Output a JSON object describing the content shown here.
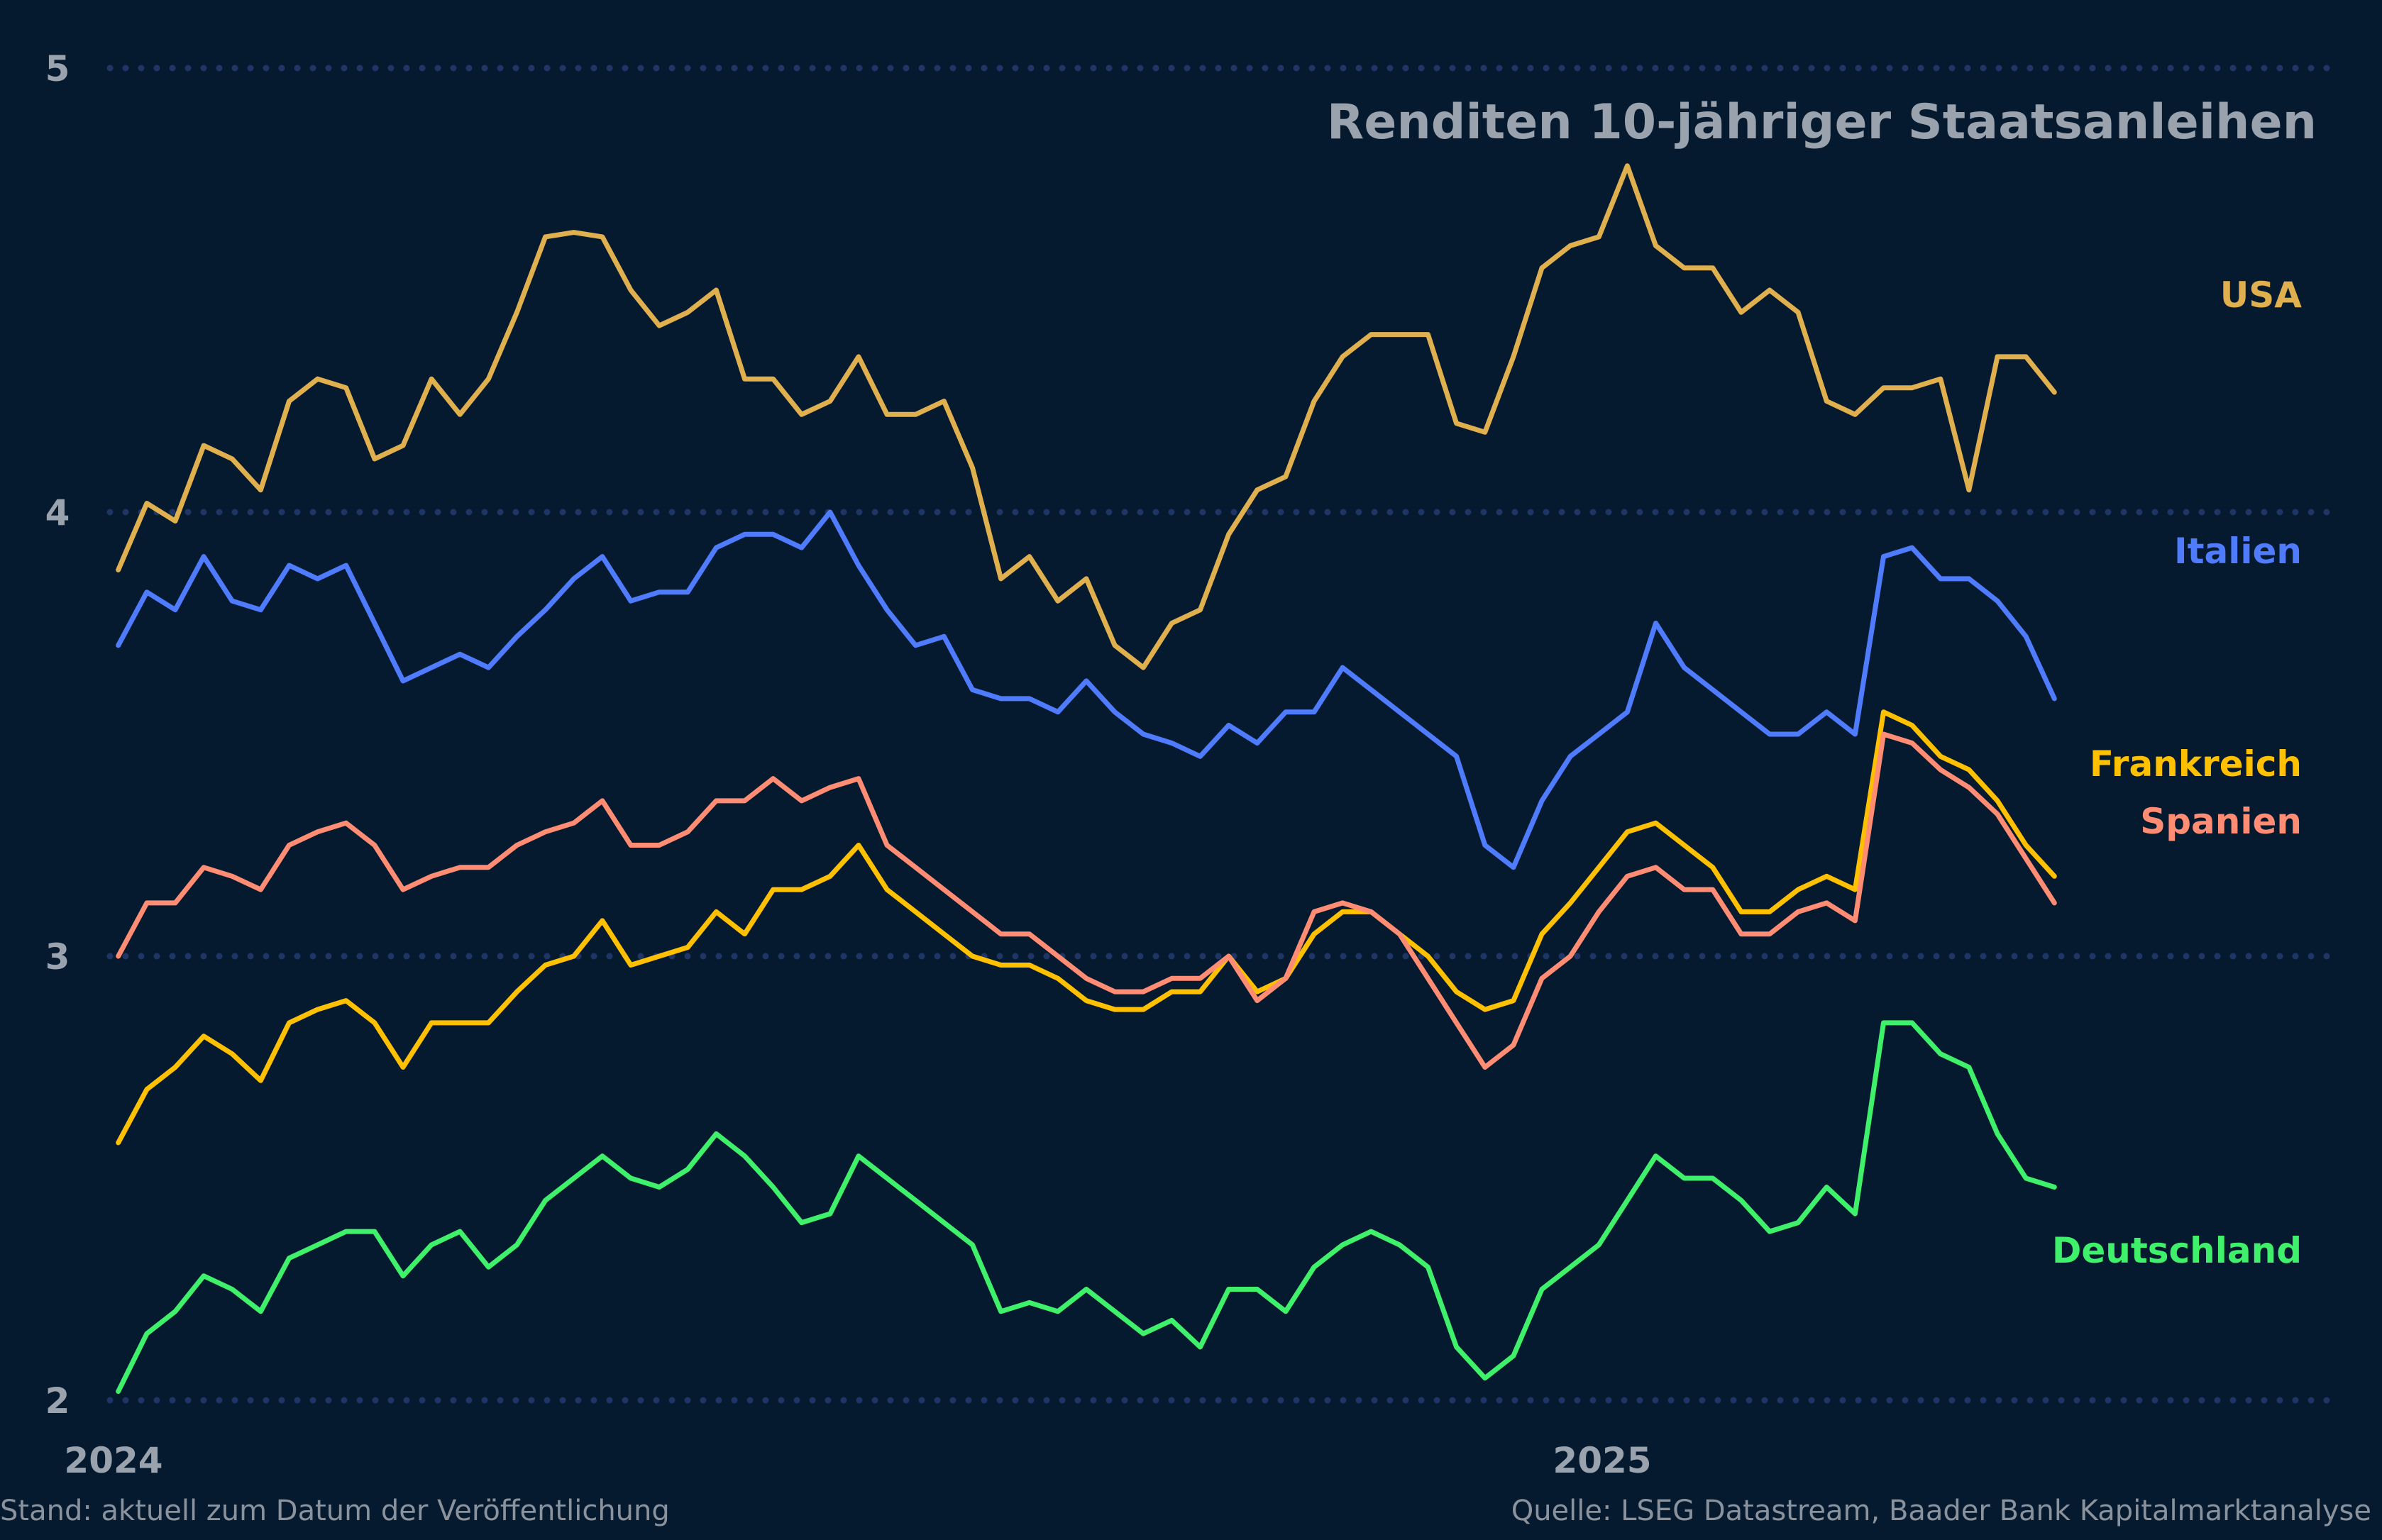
{
  "chart_data": {
    "type": "line",
    "title": "Renditen 10-jähriger Staatsanleihen",
    "xlabel": "",
    "ylabel": "",
    "ylim": [
      2,
      5
    ],
    "yticks": [
      "2",
      "3",
      "4",
      "5"
    ],
    "xticks": [
      {
        "label": "2024",
        "date": "2024-01-01"
      },
      {
        "label": "2025",
        "date": "2025-01-01"
      }
    ],
    "grid": "horizontal dotted",
    "legend": "labels at right end of lines",
    "x": [
      "2024-01-02",
      "2024-01-09",
      "2024-01-16",
      "2024-01-23",
      "2024-01-30",
      "2024-02-06",
      "2024-02-13",
      "2024-02-20",
      "2024-02-27",
      "2024-03-05",
      "2024-03-12",
      "2024-03-19",
      "2024-03-26",
      "2024-04-02",
      "2024-04-09",
      "2024-04-16",
      "2024-04-23",
      "2024-04-30",
      "2024-05-07",
      "2024-05-14",
      "2024-05-21",
      "2024-05-28",
      "2024-06-04",
      "2024-06-11",
      "2024-06-18",
      "2024-06-25",
      "2024-07-02",
      "2024-07-09",
      "2024-07-16",
      "2024-07-23",
      "2024-07-30",
      "2024-08-06",
      "2024-08-13",
      "2024-08-20",
      "2024-08-27",
      "2024-09-03",
      "2024-09-10",
      "2024-09-17",
      "2024-09-24",
      "2024-10-01",
      "2024-10-08",
      "2024-10-15",
      "2024-10-22",
      "2024-10-29",
      "2024-11-05",
      "2024-11-12",
      "2024-11-19",
      "2024-11-26",
      "2024-12-03",
      "2024-12-10",
      "2024-12-17",
      "2024-12-24",
      "2024-12-31",
      "2025-01-07",
      "2025-01-14",
      "2025-01-21",
      "2025-01-28",
      "2025-02-04",
      "2025-02-11",
      "2025-02-18",
      "2025-02-25",
      "2025-03-04",
      "2025-03-11",
      "2025-03-18",
      "2025-03-25",
      "2025-04-01",
      "2025-04-08",
      "2025-04-15",
      "2025-04-22"
    ],
    "series": [
      {
        "name": "USA",
        "color": "#e0b04e",
        "values": [
          3.87,
          4.02,
          3.98,
          4.15,
          4.12,
          4.05,
          4.25,
          4.3,
          4.28,
          4.12,
          4.15,
          4.3,
          4.22,
          4.3,
          4.45,
          4.62,
          4.63,
          4.62,
          4.5,
          4.42,
          4.45,
          4.5,
          4.3,
          4.3,
          4.22,
          4.25,
          4.35,
          4.22,
          4.22,
          4.25,
          4.1,
          3.85,
          3.9,
          3.8,
          3.85,
          3.7,
          3.65,
          3.75,
          3.78,
          3.95,
          4.05,
          4.08,
          4.25,
          4.35,
          4.4,
          4.4,
          4.4,
          4.2,
          4.18,
          4.35,
          4.55,
          4.6,
          4.62,
          4.78,
          4.6,
          4.55,
          4.55,
          4.45,
          4.5,
          4.45,
          4.25,
          4.22,
          4.28,
          4.28,
          4.3,
          4.05,
          4.35,
          4.35,
          4.27
        ]
      },
      {
        "name": "Italien",
        "color": "#4f7cff",
        "values": [
          3.7,
          3.82,
          3.78,
          3.9,
          3.8,
          3.78,
          3.88,
          3.85,
          3.88,
          3.75,
          3.62,
          3.65,
          3.68,
          3.65,
          3.72,
          3.78,
          3.85,
          3.9,
          3.8,
          3.82,
          3.82,
          3.92,
          3.95,
          3.95,
          3.92,
          4.0,
          3.88,
          3.78,
          3.7,
          3.72,
          3.6,
          3.58,
          3.58,
          3.55,
          3.62,
          3.55,
          3.5,
          3.48,
          3.45,
          3.52,
          3.48,
          3.55,
          3.55,
          3.65,
          3.6,
          3.55,
          3.5,
          3.45,
          3.25,
          3.2,
          3.35,
          3.45,
          3.5,
          3.55,
          3.75,
          3.65,
          3.6,
          3.55,
          3.5,
          3.5,
          3.55,
          3.5,
          3.9,
          3.92,
          3.85,
          3.85,
          3.8,
          3.72,
          3.58
        ]
      },
      {
        "name": "Frankreich",
        "color": "#ffc000",
        "values": [
          2.58,
          2.7,
          2.75,
          2.82,
          2.78,
          2.72,
          2.85,
          2.88,
          2.9,
          2.85,
          2.75,
          2.85,
          2.85,
          2.85,
          2.92,
          2.98,
          3.0,
          3.08,
          2.98,
          3.0,
          3.02,
          3.1,
          3.05,
          3.15,
          3.15,
          3.18,
          3.25,
          3.15,
          3.1,
          3.05,
          3.0,
          2.98,
          2.98,
          2.95,
          2.9,
          2.88,
          2.88,
          2.92,
          2.92,
          3.0,
          2.92,
          2.95,
          3.05,
          3.1,
          3.1,
          3.05,
          3.0,
          2.92,
          2.88,
          2.9,
          3.05,
          3.12,
          3.2,
          3.28,
          3.3,
          3.25,
          3.2,
          3.1,
          3.1,
          3.15,
          3.18,
          3.15,
          3.55,
          3.52,
          3.45,
          3.42,
          3.35,
          3.25,
          3.18
        ]
      },
      {
        "name": "Spanien",
        "color": "#ff8c73",
        "values": [
          3.0,
          3.12,
          3.12,
          3.2,
          3.18,
          3.15,
          3.25,
          3.28,
          3.3,
          3.25,
          3.15,
          3.18,
          3.2,
          3.2,
          3.25,
          3.28,
          3.3,
          3.35,
          3.25,
          3.25,
          3.28,
          3.35,
          3.35,
          3.4,
          3.35,
          3.38,
          3.4,
          3.25,
          3.2,
          3.15,
          3.1,
          3.05,
          3.05,
          3.0,
          2.95,
          2.92,
          2.92,
          2.95,
          2.95,
          3.0,
          2.9,
          2.95,
          3.1,
          3.12,
          3.1,
          3.05,
          2.95,
          2.85,
          2.75,
          2.8,
          2.95,
          3.0,
          3.1,
          3.18,
          3.2,
          3.15,
          3.15,
          3.05,
          3.05,
          3.1,
          3.12,
          3.08,
          3.5,
          3.48,
          3.42,
          3.38,
          3.32,
          3.22,
          3.12
        ]
      },
      {
        "name": "Deutschland",
        "color": "#3ef06a",
        "values": [
          2.02,
          2.15,
          2.2,
          2.28,
          2.25,
          2.2,
          2.32,
          2.35,
          2.38,
          2.38,
          2.28,
          2.35,
          2.38,
          2.3,
          2.35,
          2.45,
          2.5,
          2.55,
          2.5,
          2.48,
          2.52,
          2.6,
          2.55,
          2.48,
          2.4,
          2.42,
          2.55,
          2.5,
          2.45,
          2.4,
          2.35,
          2.2,
          2.22,
          2.2,
          2.25,
          2.2,
          2.15,
          2.18,
          2.12,
          2.25,
          2.25,
          2.2,
          2.3,
          2.35,
          2.38,
          2.35,
          2.3,
          2.12,
          2.05,
          2.1,
          2.25,
          2.3,
          2.35,
          2.45,
          2.55,
          2.5,
          2.5,
          2.45,
          2.38,
          2.4,
          2.48,
          2.42,
          2.85,
          2.85,
          2.78,
          2.75,
          2.6,
          2.5,
          2.48
        ]
      }
    ]
  },
  "footer": {
    "left": "Stand: aktuell zum Datum der Veröffentlichung",
    "right": "Quelle: LSEG Datastream, Baader Bank Kapitalmarktanalyse"
  },
  "colors": {
    "background": "#061a2f",
    "grid": "#1e3566",
    "text": "#9aa3ad"
  }
}
